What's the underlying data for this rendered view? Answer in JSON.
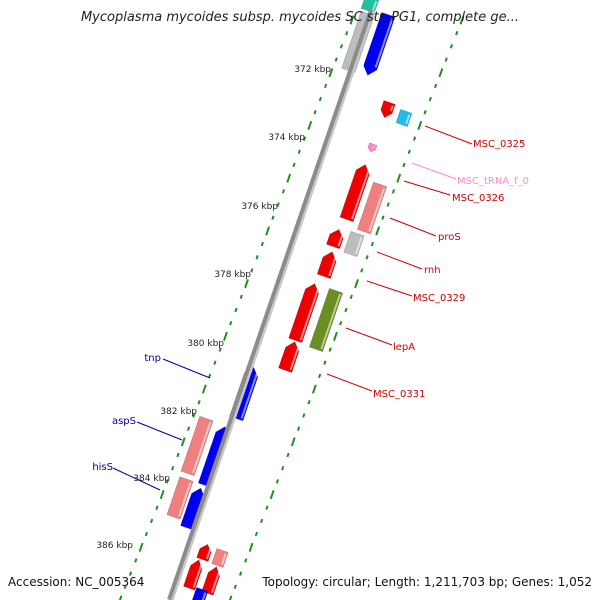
{
  "title": "Mycoplasma mycoides subsp. mycoides SC str. PG1, complete ge...",
  "accession": "Accession: NC_005364",
  "summary": "Topology: circular; Length: 1,211,703 bp; Genes: 1,052",
  "colors": {
    "backbone": "#8c8c8c",
    "ticks": "#1f8f1f",
    "gene_red": "#ee0000",
    "gene_blue": "#0000ee",
    "gene_pink": "#f08080",
    "gene_gray": "#bdbdbd",
    "gene_green": "#6b8e23",
    "gene_cyan": "#22bbee",
    "trna": "#ff88cc",
    "label_red": "#cc0000",
    "label_blue": "#000099"
  },
  "kbp_ticks": [
    {
      "label": "372 kbp"
    },
    {
      "label": "374 kbp"
    },
    {
      "label": "376 kbp"
    },
    {
      "label": "378 kbp"
    },
    {
      "label": "380 kbp"
    },
    {
      "label": "382 kbp"
    },
    {
      "label": "384 kbp"
    },
    {
      "label": "386 kbp"
    }
  ],
  "feature_labels": [
    {
      "text": "MSC_0325",
      "color": "label_red"
    },
    {
      "text": "MSC_tRNA_f_0",
      "color": "trna"
    },
    {
      "text": "MSC_0326",
      "color": "label_red"
    },
    {
      "text": "proS",
      "color": "label_red"
    },
    {
      "text": "rnh",
      "color": "label_red"
    },
    {
      "text": "MSC_0329",
      "color": "label_red"
    },
    {
      "text": "lepA",
      "color": "label_red"
    },
    {
      "text": "MSC_0331",
      "color": "label_red"
    },
    {
      "text": "tnp",
      "color": "label_blue"
    },
    {
      "text": "aspS",
      "color": "label_blue"
    },
    {
      "text": "hisS",
      "color": "label_blue"
    }
  ]
}
